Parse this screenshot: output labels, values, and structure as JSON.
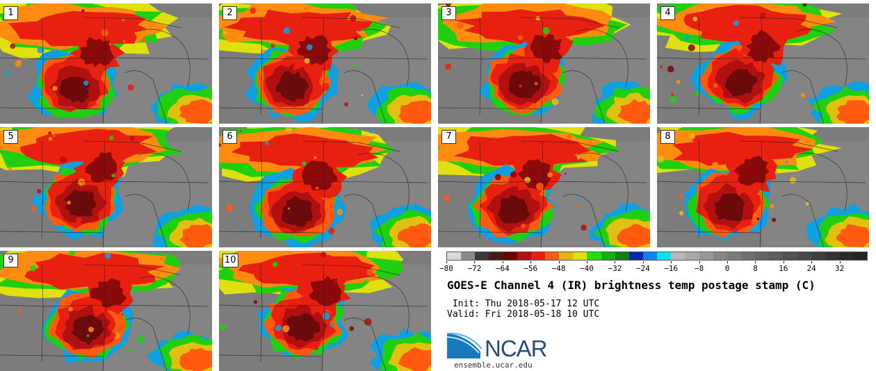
{
  "panels": [
    {
      "label": "1"
    },
    {
      "label": "2"
    },
    {
      "label": "3"
    },
    {
      "label": "4"
    },
    {
      "label": "5"
    },
    {
      "label": "6"
    },
    {
      "label": "7"
    },
    {
      "label": "8"
    },
    {
      "label": "9"
    },
    {
      "label": "10"
    }
  ],
  "colorbar": {
    "colors": [
      "#d8d8d8",
      "#8a8a8a",
      "#3a3a3a",
      "#4a1a1a",
      "#6a0000",
      "#b01010",
      "#e82010",
      "#f06010",
      "#e8b018",
      "#e0e010",
      "#20e010",
      "#10b010",
      "#108010",
      "#0828a8",
      "#1080f0",
      "#10e0f0",
      "#b8b8b8",
      "#a8a8a8",
      "#989898",
      "#888888",
      "#7c7c7c",
      "#707070",
      "#666666",
      "#5c5c5c",
      "#525252",
      "#484848",
      "#3e3e3e",
      "#343434",
      "#2a2a2a",
      "#222222"
    ],
    "ticks": [
      "−80",
      "−72",
      "−64",
      "−56",
      "−48",
      "−40",
      "−32",
      "−24",
      "−16",
      "−8",
      "0",
      "8",
      "16",
      "24",
      "32"
    ]
  },
  "title": "GOES-E Channel 4 (IR) brightness temp postage stamp (C)",
  "init_line": " Init: Thu 2018-05-17 12 UTC",
  "valid_line": "Valid: Fri 2018-05-18 10 UTC",
  "logo": {
    "text": "NCAR",
    "url": "ensemble.ucar.edu"
  }
}
